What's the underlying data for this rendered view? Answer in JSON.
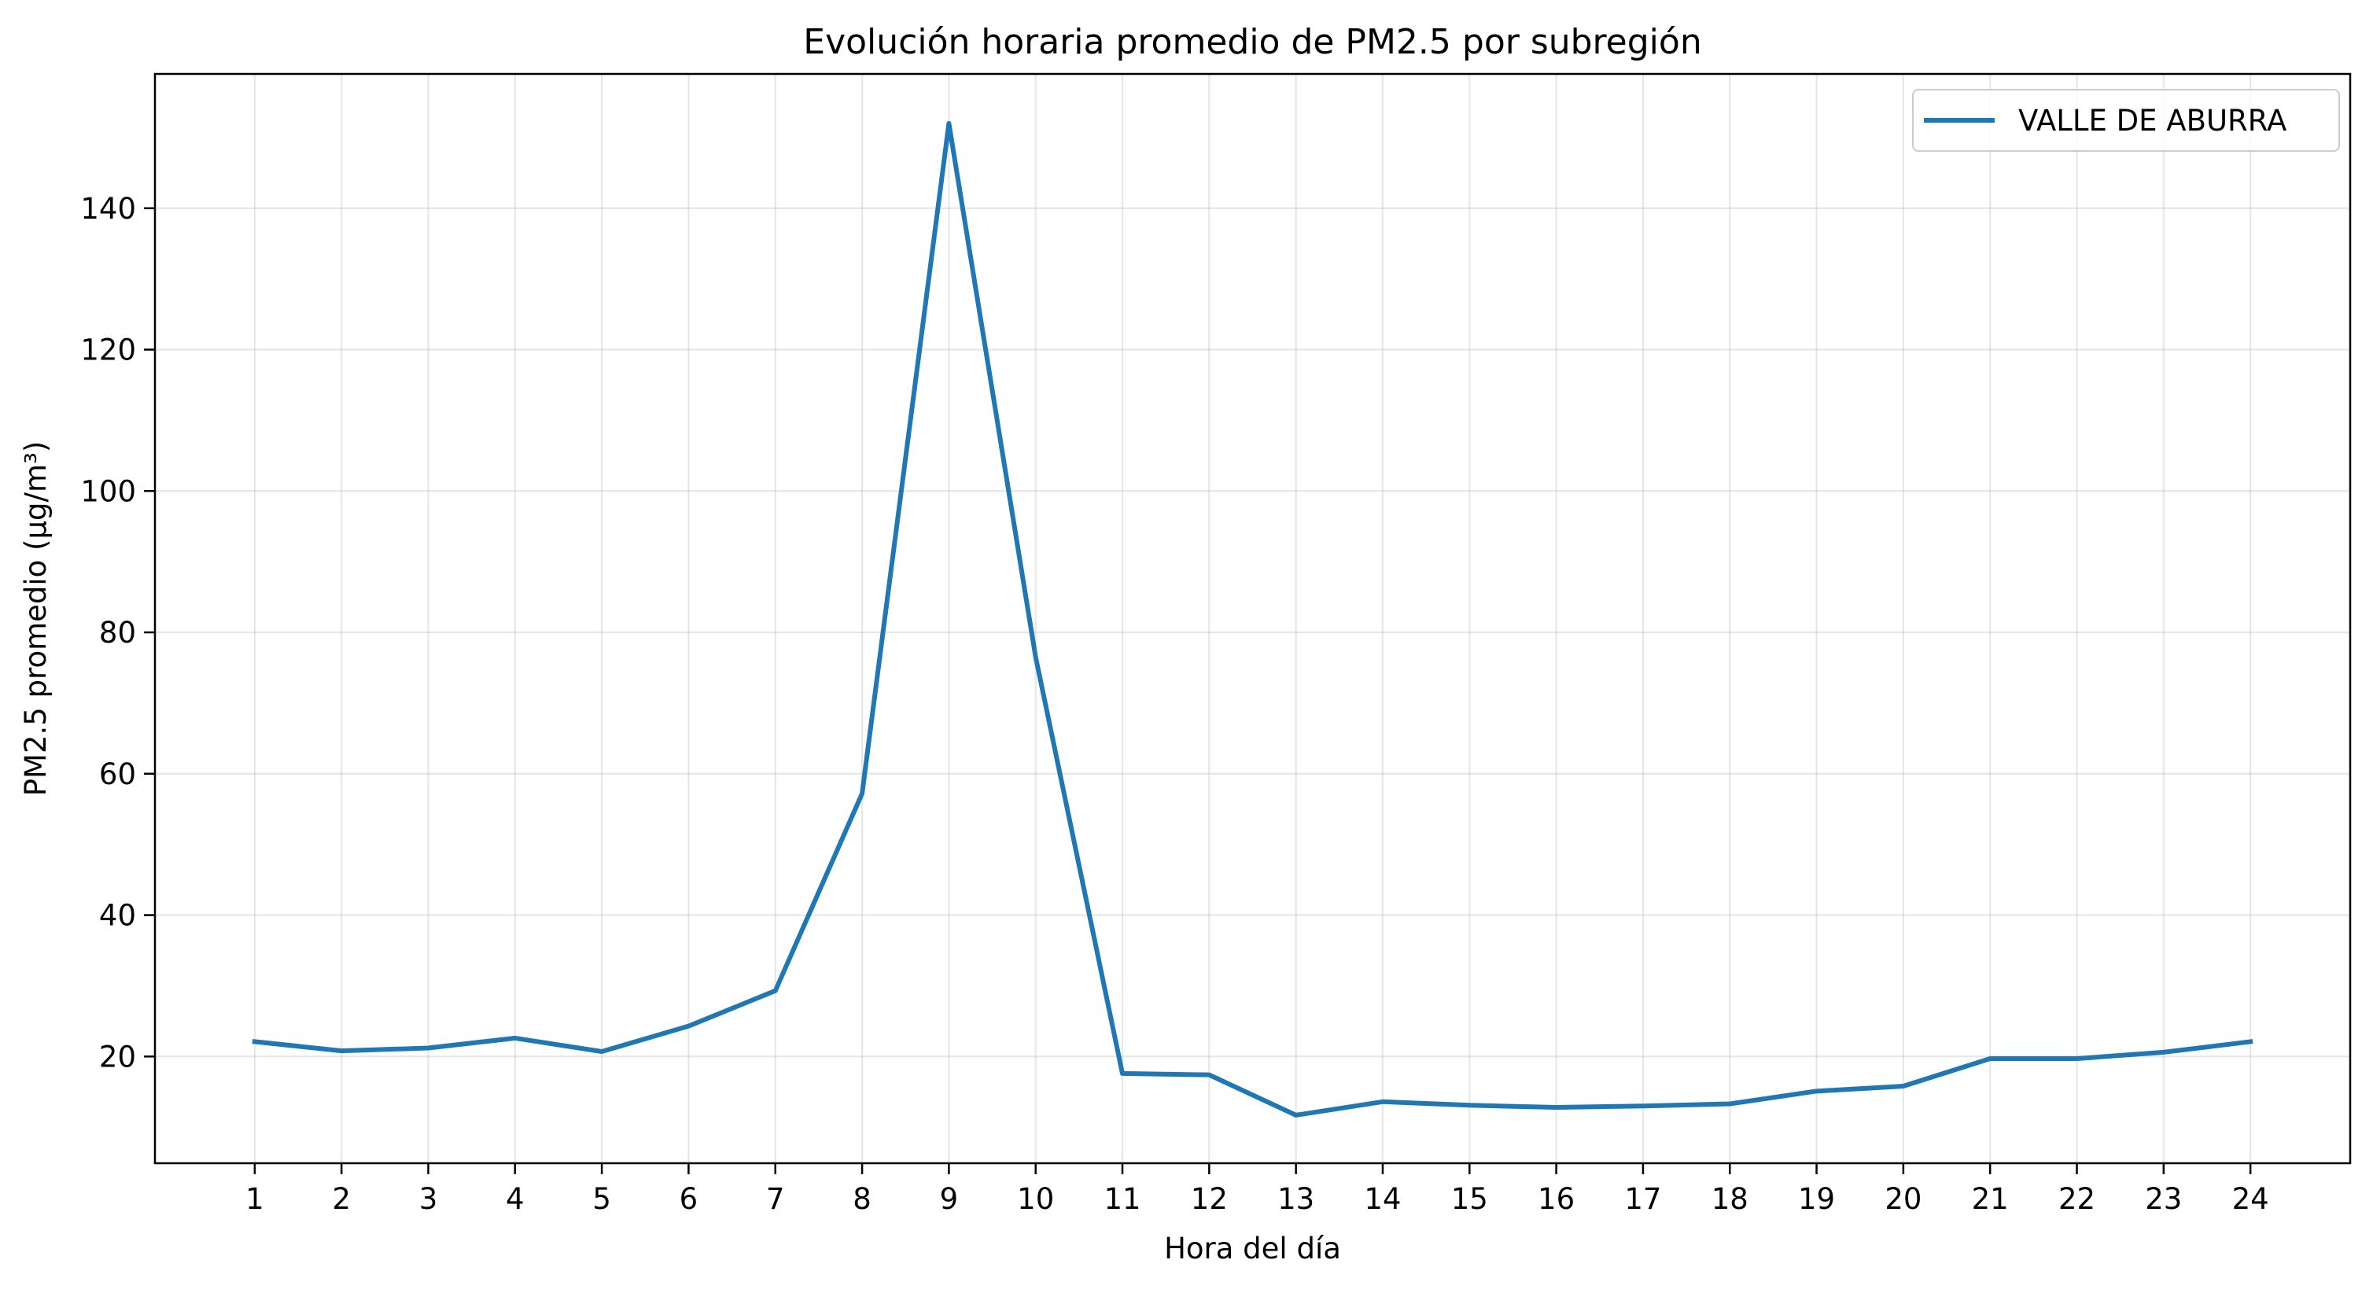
{
  "chart_data": {
    "type": "line",
    "title": "Evolución horaria promedio de PM2.5 por subregión",
    "xlabel": "Hora del día",
    "ylabel": "PM2.5 promedio (µg/m³)",
    "x": [
      1,
      2,
      3,
      4,
      5,
      6,
      7,
      8,
      9,
      10,
      11,
      12,
      13,
      14,
      15,
      16,
      17,
      18,
      19,
      20,
      21,
      22,
      23,
      24
    ],
    "xticks": [
      "1",
      "2",
      "3",
      "4",
      "5",
      "6",
      "7",
      "8",
      "9",
      "10",
      "11",
      "12",
      "13",
      "14",
      "15",
      "16",
      "17",
      "18",
      "19",
      "20",
      "21",
      "22",
      "23",
      "24"
    ],
    "xlim": [
      -0.15,
      25.15
    ],
    "yticks": [
      "20",
      "40",
      "60",
      "80",
      "100",
      "120",
      "140"
    ],
    "ylim": [
      4.9,
      159.0
    ],
    "grid": true,
    "legend_position": "top-right",
    "series": [
      {
        "name": "VALLE DE ABURRA",
        "color": "#1f77b4",
        "values": [
          22.1,
          20.8,
          21.2,
          22.6,
          20.7,
          24.3,
          29.3,
          57.2,
          152.0,
          76.5,
          17.6,
          17.4,
          11.7,
          13.6,
          13.1,
          12.8,
          13.0,
          13.3,
          15.1,
          15.8,
          19.7,
          19.7,
          20.6,
          22.1
        ]
      }
    ]
  }
}
